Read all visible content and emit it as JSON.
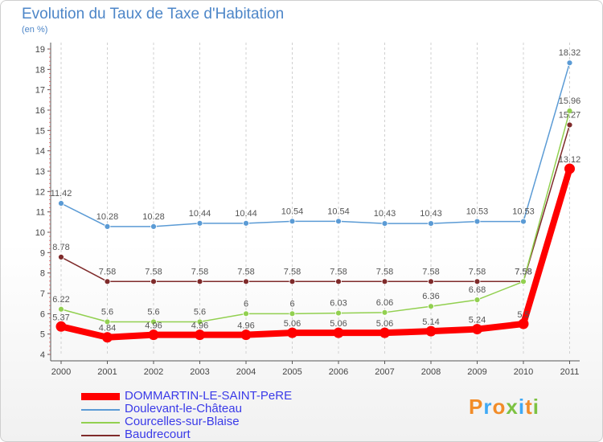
{
  "chart_data": {
    "type": "line",
    "title": "Evolution du Taux de Taxe d'Habitation",
    "subtitle": "(en %)",
    "categories": [
      "2000",
      "2001",
      "2002",
      "2003",
      "2004",
      "2005",
      "2006",
      "2007",
      "2008",
      "2009",
      "2010",
      "2011"
    ],
    "ylim": [
      4,
      19
    ],
    "yticks": [
      "4",
      "5",
      "6",
      "7",
      "8",
      "9",
      "10",
      "11",
      "12",
      "13",
      "14",
      "15",
      "16",
      "17",
      "18",
      "19"
    ],
    "grid": "vertical-dashed",
    "legend_position": "bottom-left",
    "series": [
      {
        "name": "DOMMARTIN-LE-SAINT-PeRE",
        "color": "#ff0000",
        "values": [
          5.37,
          4.84,
          4.96,
          4.96,
          4.96,
          5.06,
          5.06,
          5.06,
          5.14,
          5.24,
          5.5,
          13.12
        ],
        "labels": [
          "5.37",
          "4.84",
          "4.96",
          "4.96",
          "4.96",
          "5.06",
          "5.06",
          "5.06",
          "5.14",
          "5.24",
          "5.5",
          "13.12"
        ]
      },
      {
        "name": "Doulevant-le-Château",
        "color": "#5b9bd5",
        "values": [
          11.42,
          10.28,
          10.28,
          10.44,
          10.44,
          10.54,
          10.54,
          10.43,
          10.43,
          10.53,
          10.53,
          18.32
        ],
        "labels": [
          "11.42",
          "10.28",
          "10.28",
          "10.44",
          "10.44",
          "10.54",
          "10.54",
          "10.43",
          "10.43",
          "10.53",
          "10.53",
          "18.32"
        ]
      },
      {
        "name": "Courcelles-sur-Blaise",
        "color": "#92d050",
        "values": [
          6.22,
          5.6,
          5.6,
          5.6,
          6,
          6,
          6.03,
          6.06,
          6.36,
          6.68,
          7.58,
          15.96
        ],
        "labels": [
          "6.22",
          "5.6",
          "5.6",
          "5.6",
          "6",
          "6",
          "6.03",
          "6.06",
          "6.36",
          "6.68",
          "7.58",
          "15.96"
        ]
      },
      {
        "name": "Baudrecourt",
        "color": "#7f2b2b",
        "values": [
          8.78,
          7.58,
          7.58,
          7.58,
          7.58,
          7.58,
          7.58,
          7.58,
          7.58,
          7.58,
          7.58,
          15.27
        ],
        "labels": [
          "8.78",
          "7.58",
          "7.58",
          "7.58",
          "7.58",
          "7.58",
          "7.58",
          "7.58",
          "7.58",
          "7.58",
          "7.58",
          "15.27"
        ]
      }
    ]
  },
  "logo": {
    "letters": [
      "P",
      "r",
      "o",
      "x",
      "i",
      "t",
      "i"
    ],
    "colors": [
      "#f28c28",
      "#3fa9f5",
      "#f28c28",
      "#7dc242",
      "#3fa9f5",
      "#f28c28",
      "#7dc242"
    ]
  }
}
